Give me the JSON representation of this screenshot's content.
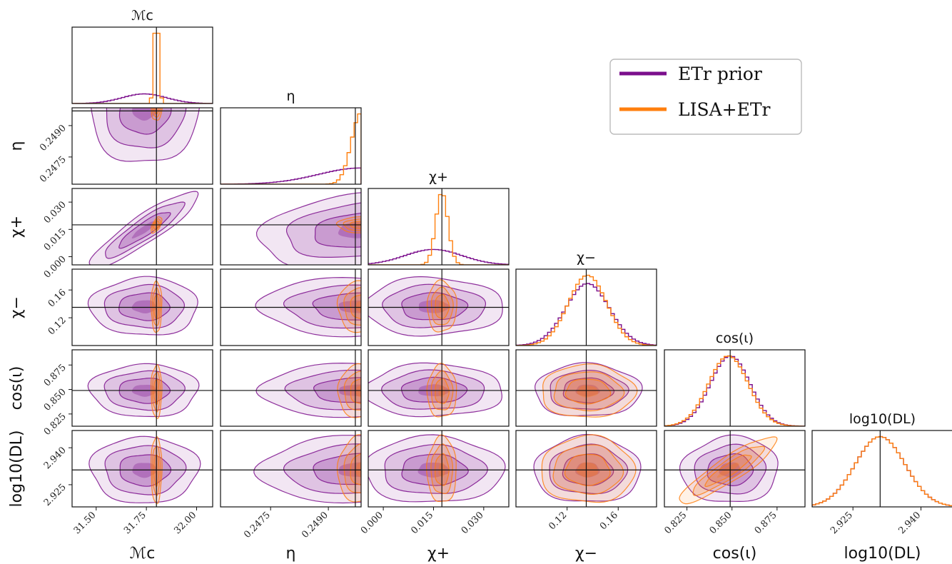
{
  "chart_data": {
    "type": "corner",
    "parameters": [
      {
        "key": "Mc",
        "label": "ℳc",
        "truth": 31.8,
        "range": [
          31.38,
          32.08
        ],
        "ticks": [
          "31.50",
          "31.75",
          "32.00"
        ]
      },
      {
        "key": "eta",
        "label": "η",
        "truth": 0.2497,
        "range": [
          0.2462,
          0.24985
        ],
        "ticks": [
          "0.2475",
          "0.2490"
        ]
      },
      {
        "key": "chi_plus",
        "label": "χ+",
        "truth": 0.0175,
        "range": [
          -0.0045,
          0.0375
        ],
        "ticks": [
          "0.000",
          "0.015",
          "0.030"
        ]
      },
      {
        "key": "chi_minus",
        "label": "χ−",
        "truth": 0.135,
        "range": [
          0.08,
          0.19
        ],
        "ticks": [
          "0.12",
          "0.16"
        ]
      },
      {
        "key": "cos_iota",
        "label": "cos(ι)",
        "truth": 0.849,
        "range": [
          0.8125,
          0.8905
        ],
        "ticks": [
          "0.825",
          "0.850",
          "0.875"
        ]
      },
      {
        "key": "log10_DL",
        "label": "log10(DL)",
        "truth": 2.931,
        "range": [
          2.916,
          2.947
        ],
        "ticks": [
          "2.925",
          "2.940"
        ]
      }
    ],
    "series": [
      {
        "name": "ETr prior",
        "color": "#7B0E8C",
        "means": [
          31.74,
          0.24985,
          0.015,
          0.136,
          0.849,
          2.931
        ],
        "sigmas": [
          0.11,
          0.0011,
          0.0085,
          0.017,
          0.011,
          0.0055
        ],
        "corr": {
          "Mc,chi_plus": 0.9,
          "eta,chi_plus": 0.3,
          "cos_iota,log10_DL": 0.05
        }
      },
      {
        "name": "LISA+ETr",
        "color": "#FF7F0E",
        "means": [
          31.8,
          0.24985,
          0.0175,
          0.136,
          0.848,
          2.931
        ],
        "sigmas": [
          0.011,
          0.00025,
          0.0018,
          0.015,
          0.011,
          0.0055
        ],
        "corr": {
          "Mc,chi_plus": 0.6,
          "cos_iota,log10_DL": 0.9
        }
      }
    ],
    "legend": {
      "position": "top-right"
    },
    "grid": false
  }
}
